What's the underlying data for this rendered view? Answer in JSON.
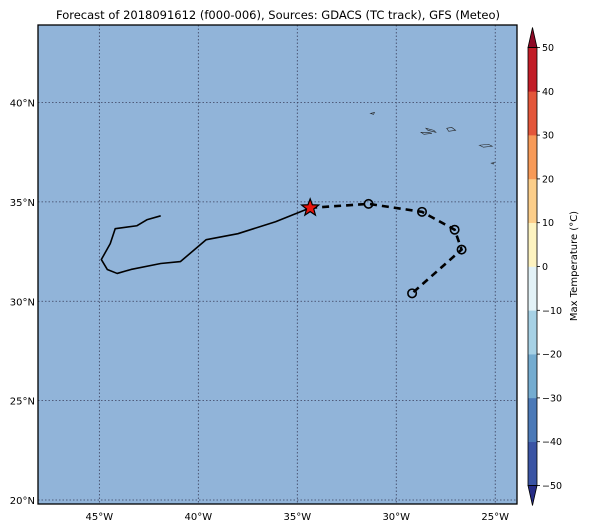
{
  "title": "Forecast of 2018091612 (f000-006), Sources: GDACS (TC track), GFS (Meteo)",
  "colors": {
    "ocean": "#91b4d9",
    "grid": "#3a3f5c",
    "track": "#000000",
    "current_marker": "#e8140c"
  },
  "map": {
    "lon_range": [
      -48.1,
      -23.9
    ],
    "lat_range": [
      19.8,
      43.9
    ],
    "lon_ticks": [
      {
        "value": -45,
        "label": "45°W"
      },
      {
        "value": -40,
        "label": "40°W"
      },
      {
        "value": -35,
        "label": "35°W"
      },
      {
        "value": -30,
        "label": "30°W"
      },
      {
        "value": -25,
        "label": "25°W"
      }
    ],
    "lat_ticks": [
      {
        "value": 20,
        "label": "20°N"
      },
      {
        "value": 25,
        "label": "25°N"
      },
      {
        "value": 30,
        "label": "30°N"
      },
      {
        "value": 35,
        "label": "35°N"
      },
      {
        "value": 40,
        "label": "40°N"
      }
    ],
    "grid": true,
    "past_track": [
      [
        -41.9,
        34.3
      ],
      [
        -42.6,
        34.1
      ],
      [
        -43.1,
        33.8
      ],
      [
        -44.2,
        33.65
      ],
      [
        -44.45,
        32.9
      ],
      [
        -44.9,
        32.1
      ],
      [
        -44.6,
        31.6
      ],
      [
        -44.1,
        31.4
      ],
      [
        -43.4,
        31.6
      ],
      [
        -41.9,
        31.9
      ],
      [
        -40.9,
        32.0
      ],
      [
        -39.6,
        33.1
      ],
      [
        -38.0,
        33.4
      ],
      [
        -36.1,
        34.0
      ],
      [
        -34.35,
        34.7
      ]
    ],
    "current_position": [
      -34.35,
      34.7
    ],
    "forecast_track": [
      [
        -34.35,
        34.7
      ],
      [
        -31.4,
        34.9
      ],
      [
        -28.7,
        34.5
      ],
      [
        -27.05,
        33.6
      ],
      [
        -26.7,
        32.6
      ],
      [
        -29.2,
        30.4
      ]
    ],
    "islands": [
      [
        [
          -31.3,
          39.45
        ],
        [
          -31.1,
          39.5
        ],
        [
          -31.15,
          39.4
        ]
      ],
      [
        [
          -28.5,
          38.7
        ],
        [
          -28.1,
          38.6
        ],
        [
          -28.0,
          38.5
        ],
        [
          -28.4,
          38.6
        ]
      ],
      [
        [
          -28.75,
          38.5
        ],
        [
          -28.4,
          38.5
        ],
        [
          -28.2,
          38.45
        ],
        [
          -28.6,
          38.4
        ]
      ],
      [
        [
          -27.45,
          38.7
        ],
        [
          -27.2,
          38.75
        ],
        [
          -27.0,
          38.6
        ],
        [
          -27.35,
          38.55
        ]
      ],
      [
        [
          -25.8,
          37.85
        ],
        [
          -25.35,
          37.9
        ],
        [
          -25.15,
          37.8
        ],
        [
          -25.6,
          37.75
        ]
      ],
      [
        [
          -25.2,
          36.95
        ],
        [
          -25.05,
          36.98
        ],
        [
          -25.1,
          36.9
        ]
      ]
    ]
  },
  "colorbar": {
    "label": "Max Temperature (°C)",
    "ticks": [
      "50",
      "40",
      "30",
      "20",
      "10",
      "0",
      "−10",
      "−20",
      "−30",
      "−40",
      "−50"
    ],
    "tick_values": [
      50,
      40,
      30,
      20,
      10,
      0,
      -10,
      -20,
      -30,
      -40,
      -50
    ],
    "range": [
      -50,
      50
    ],
    "colors_low_to_high": [
      "#262c86",
      "#3a54a4",
      "#4b79b7",
      "#74acd0",
      "#a6d1e5",
      "#e3f2f7",
      "#fdf3c0",
      "#fcce8a",
      "#f79a58",
      "#e3563a",
      "#c21d27",
      "#8d0a26"
    ]
  }
}
